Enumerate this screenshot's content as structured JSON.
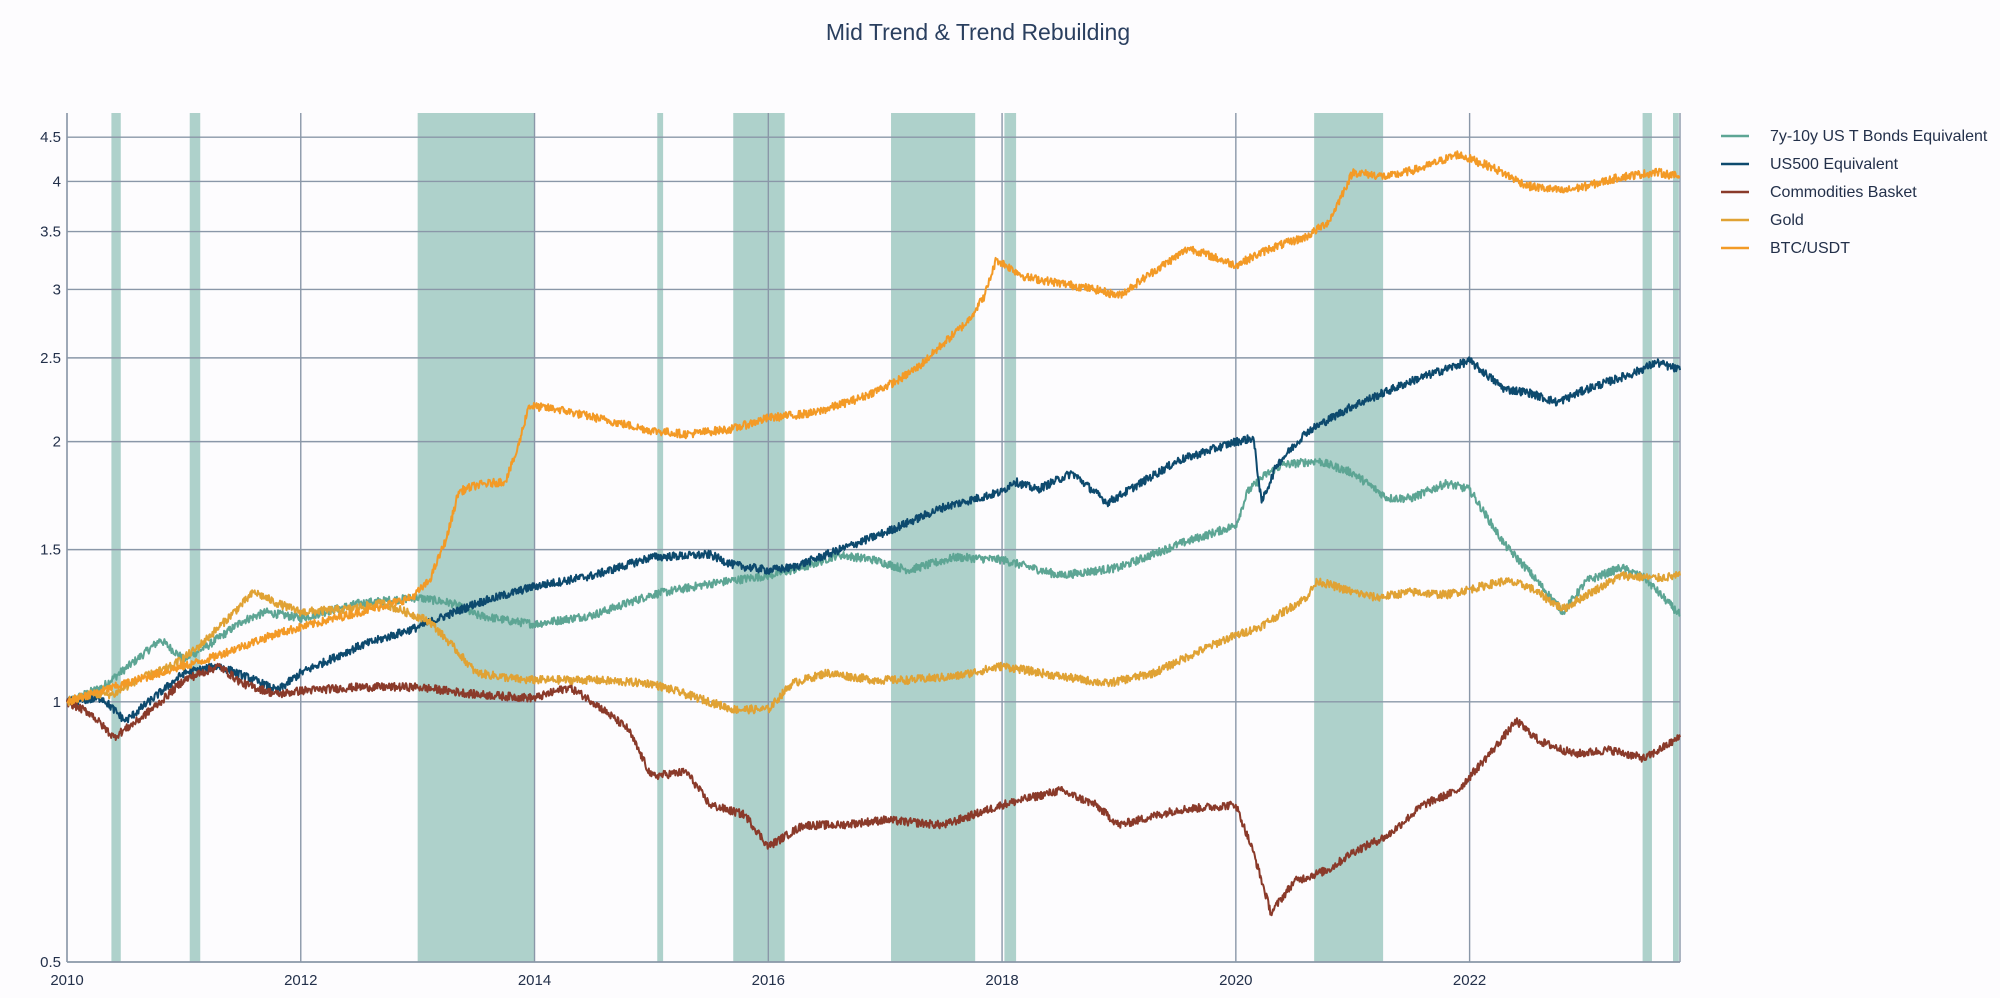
{
  "chart_data": {
    "type": "line",
    "title": "Mid Trend & Trend Rebuilding",
    "xlabel": "",
    "ylabel": "",
    "y_scale": "log",
    "xlim": [
      2010.0,
      2023.8
    ],
    "ylim": [
      0.5,
      4.8
    ],
    "x_ticks": [
      2010,
      2012,
      2014,
      2016,
      2018,
      2020,
      2022
    ],
    "x_tick_labels": [
      "2010",
      "2012",
      "2014",
      "2016",
      "2018",
      "2020",
      "2022"
    ],
    "y_ticks": [
      0.5,
      1,
      1.5,
      2,
      2.5,
      3,
      3.5,
      4,
      4.5
    ],
    "y_tick_labels": [
      "0.5",
      "1",
      "1.5",
      "2",
      "2.5",
      "3",
      "3.5",
      "4",
      "4.5"
    ],
    "grid": true,
    "legend_position": "top-right",
    "shaded_regions": [
      [
        2010.38,
        2010.46
      ],
      [
        2011.05,
        2011.14
      ],
      [
        2013.0,
        2014.0
      ],
      [
        2015.05,
        2015.1
      ],
      [
        2015.7,
        2016.14
      ],
      [
        2017.05,
        2017.77
      ],
      [
        2018.02,
        2018.12
      ],
      [
        2020.67,
        2021.26
      ],
      [
        2023.48,
        2023.56
      ],
      [
        2023.74,
        2023.79
      ]
    ],
    "series": [
      {
        "name": "7y-10y US T Bonds Equivalent",
        "color": "#5da594",
        "x": [
          2010.0,
          2010.3,
          2010.6,
          2010.8,
          2011.0,
          2011.2,
          2011.5,
          2011.7,
          2012.0,
          2012.5,
          2013.0,
          2013.3,
          2013.5,
          2013.8,
          2014.0,
          2014.5,
          2015.0,
          2015.5,
          2016.0,
          2016.3,
          2016.6,
          2016.9,
          2017.2,
          2017.6,
          2018.0,
          2018.5,
          2019.0,
          2019.5,
          2020.0,
          2020.1,
          2020.25,
          2020.4,
          2020.7,
          2021.0,
          2021.3,
          2021.5,
          2021.8,
          2022.0,
          2022.3,
          2022.5,
          2022.8,
          2023.0,
          2023.3,
          2023.5,
          2023.8
        ],
        "values": [
          1.0,
          1.04,
          1.12,
          1.18,
          1.12,
          1.16,
          1.24,
          1.27,
          1.25,
          1.3,
          1.32,
          1.3,
          1.26,
          1.24,
          1.23,
          1.26,
          1.33,
          1.37,
          1.4,
          1.43,
          1.48,
          1.46,
          1.42,
          1.47,
          1.46,
          1.4,
          1.43,
          1.52,
          1.6,
          1.75,
          1.83,
          1.88,
          1.9,
          1.84,
          1.72,
          1.72,
          1.79,
          1.76,
          1.52,
          1.42,
          1.27,
          1.38,
          1.43,
          1.39,
          1.26
        ]
      },
      {
        "name": "US500 Equivalent",
        "color": "#0d4a6e",
        "x": [
          2010.0,
          2010.3,
          2010.5,
          2010.7,
          2011.0,
          2011.3,
          2011.6,
          2011.8,
          2012.0,
          2012.5,
          2013.0,
          2013.5,
          2014.0,
          2014.5,
          2015.0,
          2015.5,
          2015.7,
          2016.0,
          2016.2,
          2016.5,
          2017.0,
          2017.5,
          2018.0,
          2018.1,
          2018.3,
          2018.6,
          2018.9,
          2019.0,
          2019.5,
          2020.0,
          2020.15,
          2020.22,
          2020.35,
          2020.6,
          2021.0,
          2021.5,
          2022.0,
          2022.3,
          2022.5,
          2022.75,
          2023.0,
          2023.4,
          2023.6,
          2023.8
        ],
        "values": [
          1.0,
          1.01,
          0.95,
          1.0,
          1.08,
          1.1,
          1.06,
          1.03,
          1.08,
          1.16,
          1.22,
          1.3,
          1.36,
          1.4,
          1.47,
          1.48,
          1.44,
          1.42,
          1.43,
          1.48,
          1.57,
          1.68,
          1.75,
          1.8,
          1.76,
          1.84,
          1.7,
          1.73,
          1.9,
          2.0,
          2.02,
          1.7,
          1.88,
          2.05,
          2.2,
          2.35,
          2.48,
          2.3,
          2.28,
          2.22,
          2.3,
          2.4,
          2.47,
          2.42
        ]
      },
      {
        "name": "Commodities Basket",
        "color": "#8a3a2a",
        "x": [
          2010.0,
          2010.2,
          2010.4,
          2010.6,
          2010.8,
          2011.0,
          2011.3,
          2011.5,
          2011.8,
          2012.0,
          2012.5,
          2013.0,
          2013.5,
          2014.0,
          2014.3,
          2014.5,
          2014.8,
          2015.0,
          2015.3,
          2015.5,
          2015.8,
          2016.0,
          2016.3,
          2016.6,
          2017.0,
          2017.5,
          2018.0,
          2018.5,
          2018.8,
          2019.0,
          2019.5,
          2020.0,
          2020.15,
          2020.3,
          2020.5,
          2020.8,
          2021.0,
          2021.3,
          2021.6,
          2021.9,
          2022.2,
          2022.4,
          2022.6,
          2022.9,
          2023.2,
          2023.5,
          2023.8
        ],
        "values": [
          1.0,
          0.97,
          0.91,
          0.95,
          1.0,
          1.06,
          1.1,
          1.05,
          1.02,
          1.03,
          1.04,
          1.04,
          1.02,
          1.01,
          1.04,
          1.0,
          0.93,
          0.82,
          0.83,
          0.76,
          0.74,
          0.68,
          0.72,
          0.72,
          0.73,
          0.72,
          0.76,
          0.79,
          0.76,
          0.72,
          0.75,
          0.76,
          0.67,
          0.57,
          0.62,
          0.64,
          0.67,
          0.7,
          0.76,
          0.79,
          0.88,
          0.95,
          0.9,
          0.87,
          0.88,
          0.86,
          0.91
        ]
      },
      {
        "name": "Gold",
        "color": "#e0a234",
        "x": [
          2010.0,
          2010.2,
          2010.4,
          2010.6,
          2010.9,
          2011.1,
          2011.3,
          2011.6,
          2011.8,
          2012.0,
          2012.4,
          2012.7,
          2012.9,
          2013.1,
          2013.3,
          2013.5,
          2013.9,
          2014.1,
          2014.5,
          2015.0,
          2015.3,
          2015.7,
          2016.0,
          2016.2,
          2016.5,
          2016.9,
          2017.2,
          2017.6,
          2018.0,
          2018.5,
          2018.9,
          2019.3,
          2019.6,
          2019.9,
          2020.2,
          2020.6,
          2020.7,
          2021.0,
          2021.2,
          2021.5,
          2021.8,
          2022.0,
          2022.3,
          2022.5,
          2022.8,
          2023.0,
          2023.3,
          2023.6,
          2023.8
        ],
        "values": [
          1.0,
          1.02,
          1.02,
          1.06,
          1.1,
          1.15,
          1.22,
          1.34,
          1.3,
          1.27,
          1.28,
          1.3,
          1.27,
          1.24,
          1.16,
          1.08,
          1.06,
          1.06,
          1.06,
          1.05,
          1.02,
          0.98,
          0.98,
          1.05,
          1.08,
          1.06,
          1.06,
          1.07,
          1.1,
          1.07,
          1.05,
          1.08,
          1.13,
          1.18,
          1.22,
          1.32,
          1.38,
          1.34,
          1.32,
          1.34,
          1.33,
          1.35,
          1.38,
          1.36,
          1.28,
          1.33,
          1.4,
          1.39,
          1.4
        ]
      },
      {
        "name": "BTC/USDT",
        "color": "#f39a26",
        "x": [
          2010.0,
          2010.3,
          2010.6,
          2010.9,
          2011.2,
          2011.5,
          2011.8,
          2012.2,
          2012.6,
          2012.95,
          2013.1,
          2013.25,
          2013.35,
          2013.5,
          2013.75,
          2013.85,
          2013.95,
          2014.2,
          2014.6,
          2015.0,
          2015.3,
          2015.7,
          2016.0,
          2016.4,
          2016.8,
          2017.1,
          2017.3,
          2017.5,
          2017.7,
          2017.85,
          2017.95,
          2018.2,
          2018.5,
          2018.8,
          2019.0,
          2019.3,
          2019.6,
          2020.0,
          2020.3,
          2020.6,
          2020.8,
          2021.0,
          2021.3,
          2021.6,
          2021.9,
          2022.2,
          2022.5,
          2022.8,
          2023.0,
          2023.3,
          2023.6,
          2023.8
        ],
        "values": [
          1.0,
          1.03,
          1.06,
          1.09,
          1.12,
          1.16,
          1.2,
          1.24,
          1.28,
          1.32,
          1.38,
          1.55,
          1.75,
          1.78,
          1.8,
          1.95,
          2.2,
          2.18,
          2.12,
          2.06,
          2.04,
          2.07,
          2.13,
          2.16,
          2.25,
          2.35,
          2.45,
          2.6,
          2.75,
          2.95,
          3.25,
          3.1,
          3.05,
          3.0,
          2.95,
          3.15,
          3.35,
          3.2,
          3.35,
          3.45,
          3.6,
          4.1,
          4.05,
          4.15,
          4.3,
          4.15,
          3.95,
          3.9,
          3.95,
          4.05,
          4.1,
          4.05
        ]
      }
    ]
  }
}
